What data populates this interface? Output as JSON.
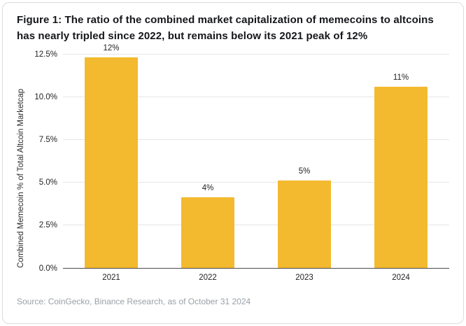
{
  "figure": {
    "title": "Figure 1: The ratio of the combined market capitalization of memecoins to altcoins has nearly tripled since 2022, but remains below its 2021 peak of 12%",
    "source": "Source: CoinGecko, Binance Research, as of October 31 2024"
  },
  "chart_data": {
    "type": "bar",
    "title": "Figure 1: The ratio of the combined market capitalization of memecoins to altcoins has nearly tripled since 2022, but remains below its 2021 peak of 12%",
    "categories": [
      "2021",
      "2022",
      "2023",
      "2024"
    ],
    "values": [
      12.3,
      4.1,
      5.1,
      10.6
    ],
    "bar_labels": [
      "12%",
      "4%",
      "5%",
      "11%"
    ],
    "xlabel": "",
    "ylabel": "Combined Memecoin % of Total Altcoin Marketcap",
    "ylim": [
      0,
      12.5
    ],
    "yticks": [
      0.0,
      2.5,
      5.0,
      7.5,
      10.0,
      12.5
    ],
    "ytick_labels": [
      "0.0%",
      "2.5%",
      "5.0%",
      "7.5%",
      "10.0%",
      "12.5%"
    ],
    "grid": true,
    "legend": "none",
    "bar_color": "#F3BA2F"
  },
  "colors": {
    "accent": "#F3BA2F",
    "title_text": "#15161a",
    "source_text": "#9aa0a6",
    "gridline": "#e6e6e6",
    "axis": "#4a4a4a"
  }
}
